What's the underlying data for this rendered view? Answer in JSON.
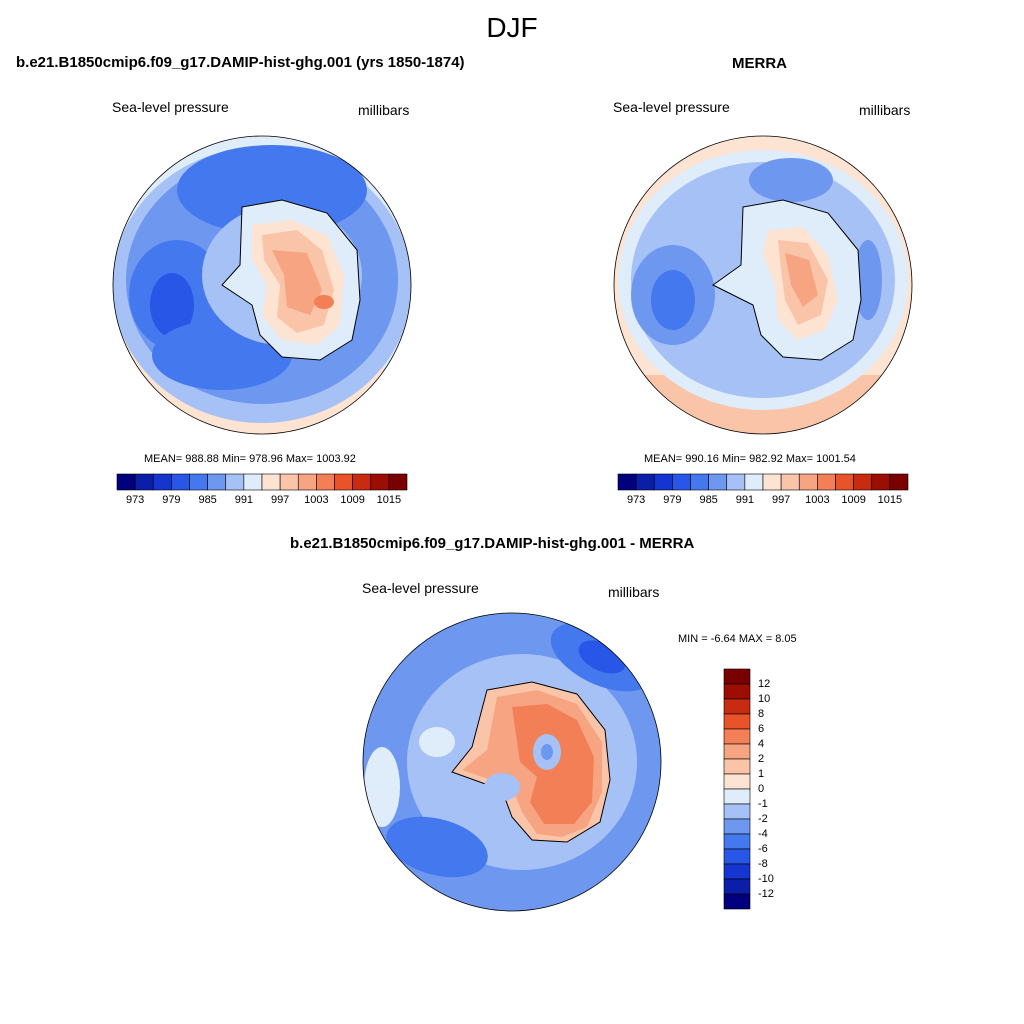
{
  "figure": {
    "title": "DJF"
  },
  "panels": [
    {
      "title": "b.e21.B1850cmip6.f09_g17.DAMIP-hist-ghg.001 (yrs 1850-1874)",
      "left_label": "Sea-level pressure",
      "right_label": "millibars",
      "stats": "MEAN= 988.88  Min= 978.96  Max= 1003.92"
    },
    {
      "title": "MERRA",
      "left_label": "Sea-level pressure",
      "right_label": "millibars",
      "stats": "MEAN= 990.16  Min= 982.92  Max= 1001.54"
    },
    {
      "title": "b.e21.B1850cmip6.f09_g17.DAMIP-hist-ghg.001 - MERRA",
      "left_label": "Sea-level pressure",
      "right_label": "millibars",
      "stats": "MIN =  -6.64 MAX =   8.05"
    }
  ],
  "chart_data": [
    {
      "type": "heatmap",
      "projection": "south-polar-stereographic",
      "title": "b.e21.B1850cmip6.f09_g17.DAMIP-hist-ghg.001 (yrs 1850-1874)",
      "variable": "Sea-level pressure",
      "units": "millibars",
      "mean": 988.88,
      "min": 978.96,
      "max": 1003.92,
      "colorbar": {
        "orientation": "horizontal",
        "levels": [
          973,
          976,
          979,
          982,
          985,
          988,
          991,
          994,
          997,
          1000,
          1003,
          1006,
          1009,
          1012,
          1015
        ],
        "tick_labels": [
          "973",
          "979",
          "985",
          "991",
          "997",
          "1003",
          "1009",
          "1015"
        ],
        "colors": [
          "#00007f",
          "#0a1ea8",
          "#1535d0",
          "#2857e8",
          "#4478ef",
          "#6e98ef",
          "#a6c1f5",
          "#dfecfa",
          "#fde3d2",
          "#fac4a8",
          "#f7a482",
          "#f37f56",
          "#e8532a",
          "#c92b10",
          "#9c0e02",
          "#7a0000"
        ]
      }
    },
    {
      "type": "heatmap",
      "projection": "south-polar-stereographic",
      "title": "MERRA",
      "variable": "Sea-level pressure",
      "units": "millibars",
      "mean": 990.16,
      "min": 982.92,
      "max": 1001.54,
      "colorbar": {
        "orientation": "horizontal",
        "levels": [
          973,
          976,
          979,
          982,
          985,
          988,
          991,
          994,
          997,
          1000,
          1003,
          1006,
          1009,
          1012,
          1015
        ],
        "tick_labels": [
          "973",
          "979",
          "985",
          "991",
          "997",
          "1003",
          "1009",
          "1015"
        ],
        "colors": [
          "#00007f",
          "#0a1ea8",
          "#1535d0",
          "#2857e8",
          "#4478ef",
          "#6e98ef",
          "#a6c1f5",
          "#dfecfa",
          "#fde3d2",
          "#fac4a8",
          "#f7a482",
          "#f37f56",
          "#e8532a",
          "#c92b10",
          "#9c0e02",
          "#7a0000"
        ]
      }
    },
    {
      "type": "heatmap",
      "projection": "south-polar-stereographic",
      "title": "b.e21.B1850cmip6.f09_g17.DAMIP-hist-ghg.001 - MERRA",
      "variable": "Sea-level pressure",
      "units": "millibars",
      "min": -6.64,
      "max": 8.05,
      "colorbar": {
        "orientation": "vertical",
        "levels": [
          -12,
          -10,
          -8,
          -6,
          -4,
          -2,
          -1,
          0,
          1,
          2,
          4,
          6,
          8,
          10,
          12
        ],
        "tick_labels": [
          "12",
          "10",
          "8",
          "6",
          "4",
          "2",
          "1",
          "0",
          "-1",
          "-2",
          "-4",
          "-6",
          "-8",
          "-10",
          "-12"
        ],
        "colors": [
          "#7a0000",
          "#9c0e02",
          "#c92b10",
          "#e8532a",
          "#f37f56",
          "#f7a482",
          "#fac4a8",
          "#fde3d2",
          "#dfecfa",
          "#a6c1f5",
          "#6e98ef",
          "#4478ef",
          "#2857e8",
          "#1535d0",
          "#0a1ea8",
          "#00007f"
        ]
      }
    }
  ]
}
